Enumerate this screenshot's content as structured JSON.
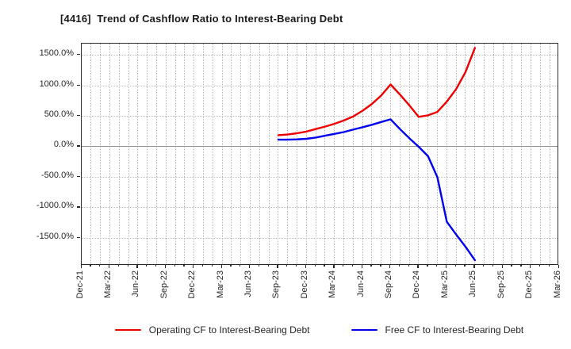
{
  "title": "[4416]  Trend of Cashflow Ratio to Interest-Bearing Debt",
  "colors": {
    "operating_cf": "#ee0000",
    "free_cf": "#0000ee",
    "grid": "#bcbcbc",
    "zero_line": "#8f8f8f",
    "frame": "#2b2b2b",
    "text": "#262626"
  },
  "legend": {
    "items": [
      {
        "label": "Operating CF to Interest-Bearing Debt",
        "color": "#ee0000"
      },
      {
        "label": "Free CF to Interest-Bearing Debt",
        "color": "#0000ee"
      }
    ]
  },
  "chart_data": {
    "type": "line",
    "title": "[4416]  Trend of Cashflow Ratio to Interest-Bearing Debt",
    "ylabel": "",
    "xlabel": "",
    "ylim": [
      -1951,
      1690
    ],
    "x_range": [
      "Dec-21",
      "Mar-26"
    ],
    "months_total": 51,
    "grid": true,
    "legend_position": "bottom",
    "y_ticks": [
      1500,
      1000,
      500,
      0,
      -500,
      -1000,
      -1500
    ],
    "y_tick_labels": [
      "1500.0%",
      "1000.0%",
      "500.0%",
      "0.0%",
      "-500.0%",
      "-1000.0%",
      "-1500.0%"
    ],
    "x_tick_labels": [
      "Dec-21",
      "Mar-22",
      "Jun-22",
      "Sep-22",
      "Dec-22",
      "Mar-23",
      "Jun-23",
      "Sep-23",
      "Dec-23",
      "Mar-24",
      "Jun-24",
      "Sep-24",
      "Dec-24",
      "Mar-25",
      "Jun-25",
      "Sep-25",
      "Dec-25",
      "Mar-26"
    ],
    "unit": "%",
    "series": [
      {
        "name": "Operating CF to Interest-Bearing Debt",
        "color": "#ee0000",
        "points": [
          [
            "Sep-23",
            190
          ],
          [
            "Oct-23",
            200
          ],
          [
            "Nov-23",
            220
          ],
          [
            "Dec-23",
            248
          ],
          [
            "Jan-24",
            290
          ],
          [
            "Feb-24",
            330
          ],
          [
            "Mar-24",
            375
          ],
          [
            "Apr-24",
            430
          ],
          [
            "May-24",
            495
          ],
          [
            "Jun-24",
            590
          ],
          [
            "Jul-24",
            700
          ],
          [
            "Aug-24",
            840
          ],
          [
            "Sep-24",
            1020
          ],
          [
            "Oct-24",
            855
          ],
          [
            "Nov-24",
            680
          ],
          [
            "Dec-24",
            490
          ],
          [
            "Jan-25",
            515
          ],
          [
            "Feb-25",
            570
          ],
          [
            "Mar-25",
            740
          ],
          [
            "Apr-25",
            945
          ],
          [
            "May-25",
            1225
          ],
          [
            "Jun-25",
            1620
          ]
        ]
      },
      {
        "name": "Free CF to Interest-Bearing Debt",
        "color": "#0000ee",
        "points": [
          [
            "Sep-23",
            115
          ],
          [
            "Oct-23",
            115
          ],
          [
            "Nov-23",
            120
          ],
          [
            "Dec-23",
            130
          ],
          [
            "Jan-24",
            150
          ],
          [
            "Feb-24",
            180
          ],
          [
            "Mar-24",
            210
          ],
          [
            "Apr-24",
            240
          ],
          [
            "May-24",
            280
          ],
          [
            "Jun-24",
            320
          ],
          [
            "Jul-24",
            360
          ],
          [
            "Aug-24",
            405
          ],
          [
            "Sep-24",
            450
          ],
          [
            "Oct-24",
            290
          ],
          [
            "Nov-24",
            140
          ],
          [
            "Dec-24",
            0
          ],
          [
            "Jan-25",
            -155
          ],
          [
            "Feb-25",
            -500
          ],
          [
            "Mar-25",
            -1230
          ],
          [
            "Apr-25",
            -1440
          ],
          [
            "May-25",
            -1640
          ],
          [
            "Jun-25",
            -1860
          ]
        ]
      }
    ]
  }
}
